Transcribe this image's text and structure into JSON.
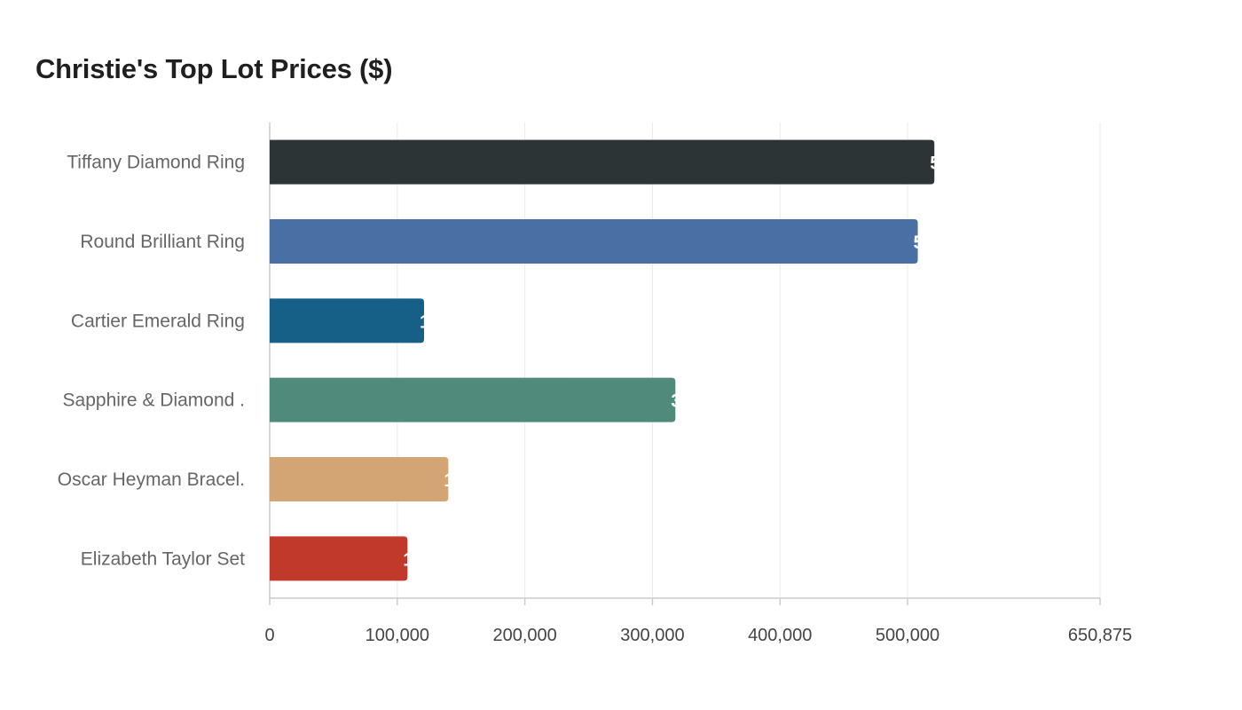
{
  "chart_data": {
    "type": "bar",
    "orientation": "horizontal",
    "title": "Christie's Top Lot Prices ($)",
    "xlabel": "",
    "ylabel": "",
    "categories": [
      "Tiffany Diamond Ring",
      "Round Brilliant Ring",
      "Cartier Emerald Ring",
      "Sapphire & Diamond .",
      "Oscar Heyman Bracel.",
      "Elizabeth Taylor Set"
    ],
    "values": [
      521000,
      508000,
      121000,
      318000,
      140000,
      108000
    ],
    "value_labels": [
      "5",
      "5",
      "1",
      "3",
      "1",
      "1"
    ],
    "colors": [
      "#2d3436",
      "#4a6fa5",
      "#166088",
      "#4f8a7a",
      "#d4a574",
      "#c0392b"
    ],
    "xlim": [
      0,
      650875
    ],
    "x_ticks": [
      0,
      100000,
      200000,
      300000,
      400000,
      500000,
      650875
    ],
    "x_tick_labels": [
      "0",
      "100,000",
      "200,000",
      "300,000",
      "400,000",
      "500,000",
      "650,875"
    ],
    "grid": true,
    "legend": "none"
  }
}
